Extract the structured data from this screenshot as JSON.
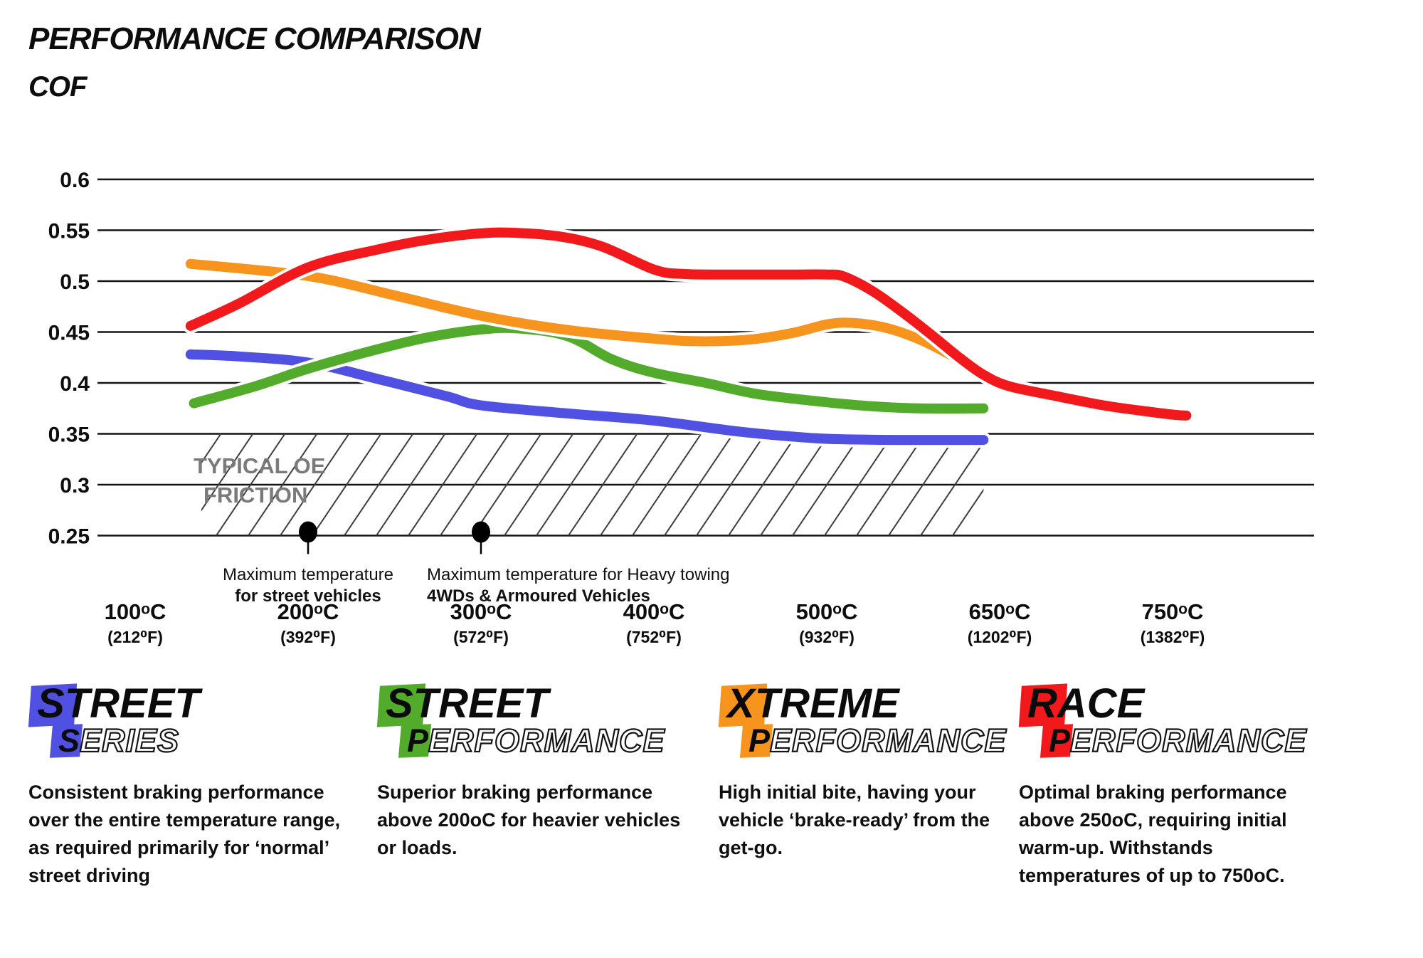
{
  "title": "PERFORMANCE COMPARISON",
  "subtitle": "COF",
  "chart_data": {
    "type": "line",
    "title": "PERFORMANCE COMPARISON",
    "ylabel": "COF",
    "ylim": [
      0.25,
      0.6
    ],
    "grid": "horizontal-only",
    "legend_position": "bottom",
    "y_ticks": [
      {
        "label": "0.6",
        "value": 0.6
      },
      {
        "label": "0.55",
        "value": 0.55
      },
      {
        "label": "0.5",
        "value": 0.5
      },
      {
        "label": "0.45",
        "value": 0.45
      },
      {
        "label": "0.4",
        "value": 0.4
      },
      {
        "label": "0.35",
        "value": 0.35
      },
      {
        "label": "0.3",
        "value": 0.3
      },
      {
        "label": "0.25",
        "value": 0.25
      }
    ],
    "x_ticks": [
      {
        "temp": 100,
        "label_c": "100ᵒC",
        "label_f": "(212⁰F)"
      },
      {
        "temp": 200,
        "label_c": "200ᵒC",
        "label_f": "(392⁰F)"
      },
      {
        "temp": 300,
        "label_c": "300ᵒC",
        "label_f": "(572⁰F)"
      },
      {
        "temp": 400,
        "label_c": "400ᵒC",
        "label_f": "(752⁰F)"
      },
      {
        "temp": 500,
        "label_c": "500ᵒC",
        "label_f": "(932⁰F)"
      },
      {
        "temp": 650,
        "label_c": "650ᵒC",
        "label_f": "(1202⁰F)"
      },
      {
        "temp": 750,
        "label_c": "750ᵒC",
        "label_f": "(1382⁰F)"
      }
    ],
    "oe_band": {
      "label_line1": "TYPICAL OE",
      "label_line2": "FRICTION",
      "from_cof": 0.25,
      "to_cof": 0.35,
      "from_temp": 135,
      "to_temp": 636
    },
    "annotations": [
      {
        "temp": 200,
        "line1": "Maximum temperature",
        "line2": "for street vehicles",
        "align": "center"
      },
      {
        "temp": 300,
        "line1": "Maximum temperature for Heavy towing",
        "line2": "4WDs & Armoured Vehicles",
        "align": "left"
      }
    ],
    "series": [
      {
        "name": "Street Series",
        "color": "#5050e2",
        "points": [
          [
            132,
            0.428
          ],
          [
            160,
            0.426
          ],
          [
            200,
            0.42
          ],
          [
            240,
            0.404
          ],
          [
            280,
            0.387
          ],
          [
            300,
            0.378
          ],
          [
            350,
            0.37
          ],
          [
            400,
            0.363
          ],
          [
            450,
            0.352
          ],
          [
            490,
            0.346
          ],
          [
            520,
            0.3445
          ],
          [
            560,
            0.344
          ],
          [
            600,
            0.344
          ],
          [
            636,
            0.344
          ]
        ]
      },
      {
        "name": "Street Performance",
        "color": "#52ab2b",
        "points": [
          [
            134,
            0.38
          ],
          [
            170,
            0.397
          ],
          [
            200,
            0.414
          ],
          [
            240,
            0.433
          ],
          [
            270,
            0.445
          ],
          [
            300,
            0.4525
          ],
          [
            322,
            0.4535
          ],
          [
            350,
            0.446
          ],
          [
            376,
            0.423
          ],
          [
            400,
            0.41
          ],
          [
            430,
            0.4
          ],
          [
            460,
            0.389
          ],
          [
            500,
            0.381
          ],
          [
            540,
            0.377
          ],
          [
            580,
            0.375
          ],
          [
            636,
            0.375
          ]
        ]
      },
      {
        "name": "Xtreme Performance",
        "color": "#f7941d",
        "points": [
          [
            132,
            0.517
          ],
          [
            200,
            0.505
          ],
          [
            250,
            0.486
          ],
          [
            300,
            0.466
          ],
          [
            350,
            0.452
          ],
          [
            400,
            0.4435
          ],
          [
            425,
            0.441
          ],
          [
            455,
            0.4425
          ],
          [
            480,
            0.449
          ],
          [
            500,
            0.4575
          ],
          [
            522,
            0.459
          ],
          [
            550,
            0.4545
          ],
          [
            580,
            0.443
          ],
          [
            610,
            0.426
          ],
          [
            636,
            0.41
          ]
        ]
      },
      {
        "name": "Race Performance",
        "color": "#f2191c",
        "points": [
          [
            132,
            0.456
          ],
          [
            160,
            0.478
          ],
          [
            200,
            0.5135
          ],
          [
            240,
            0.531
          ],
          [
            270,
            0.541
          ],
          [
            300,
            0.547
          ],
          [
            320,
            0.5475
          ],
          [
            345,
            0.544
          ],
          [
            370,
            0.534
          ],
          [
            400,
            0.5115
          ],
          [
            418,
            0.507
          ],
          [
            450,
            0.5065
          ],
          [
            480,
            0.5065
          ],
          [
            500,
            0.5065
          ],
          [
            515,
            0.5045
          ],
          [
            540,
            0.49
          ],
          [
            565,
            0.47
          ],
          [
            590,
            0.448
          ],
          [
            615,
            0.425
          ],
          [
            636,
            0.408
          ],
          [
            655,
            0.397
          ],
          [
            680,
            0.388
          ],
          [
            710,
            0.378
          ],
          [
            735,
            0.372
          ],
          [
            752,
            0.3685
          ],
          [
            758,
            0.368
          ]
        ]
      }
    ]
  },
  "legend": [
    {
      "word1_initial": "S",
      "word1_rest": "TREET",
      "word2_initial": "S",
      "word2_rest": "ERIES",
      "color": "#5050e2",
      "description": "Consistent braking performance over the entire temperature range, as required primarily for ‘normal’ street driving"
    },
    {
      "word1_initial": "S",
      "word1_rest": "TREET",
      "word2_initial": "P",
      "word2_rest": "ERFORMANCE",
      "color": "#52ab2b",
      "description": "Superior braking performance above 200oC for heavier vehicles or loads."
    },
    {
      "word1_initial": "X",
      "word1_rest": "TREME",
      "word2_initial": "P",
      "word2_rest": "ERFORMANCE",
      "color": "#f7941d",
      "description": "High initial bite, having your vehicle ‘brake-ready’ from the get-go."
    },
    {
      "word1_initial": "R",
      "word1_rest": "ACE",
      "word2_initial": "P",
      "word2_rest": "ERFORMANCE",
      "color": "#f2191c",
      "description": "Optimal braking performance above 250oC, requiring initial warm-up. Withstands temperatures of up to 750oC."
    }
  ]
}
